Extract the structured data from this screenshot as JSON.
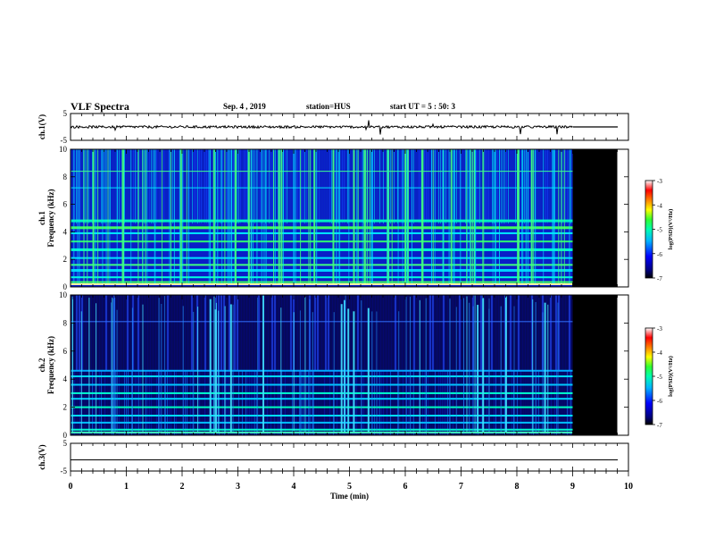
{
  "header": {
    "title": "VLF Spectra",
    "date": "Sep. 4 , 2019",
    "station": "station=HUS",
    "start_ut": "start UT =  5 : 50: 3"
  },
  "chart_data": [
    {
      "type": "line",
      "name": "ch1-waveform",
      "ylabel": "ch.1(V)",
      "ylim": [
        -5,
        5
      ],
      "yticks": [
        "5",
        "-5"
      ],
      "xlim": [
        0,
        10
      ],
      "data_end_min": 9.0,
      "flat_level_after_end": 0
    },
    {
      "type": "heatmap",
      "name": "ch1-spectrogram",
      "ylabel_top": "ch.1",
      "ylabel": "Frequency (kHz)",
      "ylim": [
        0,
        10
      ],
      "yticks": [
        "0",
        "2",
        "4",
        "6",
        "8",
        "10"
      ],
      "xlim": [
        0,
        10
      ],
      "data_end_min": 9.0,
      "blank_end_min": 9.8,
      "colorbar": {
        "label": "log(PSD)(V²/Hz)",
        "ticks": [
          "-3",
          "-4",
          "-5",
          "-6",
          "-7"
        ],
        "range": [
          -7,
          -3
        ]
      },
      "colors": [
        "#000080",
        "#0000ff",
        "#00a0ff",
        "#00ffff",
        "#40ff60",
        "#ffff00",
        "#ff8000",
        "#ff0000",
        "#ffffff"
      ]
    },
    {
      "type": "heatmap",
      "name": "ch2-spectrogram",
      "ylabel_top": "ch.2",
      "ylabel": "Frequency (kHz)",
      "ylim": [
        0,
        10
      ],
      "yticks": [
        "0",
        "2",
        "4",
        "6",
        "8",
        "10"
      ],
      "xlim": [
        0,
        10
      ],
      "data_end_min": 9.0,
      "blank_end_min": 9.8,
      "colorbar": {
        "label": "log(PSD)(V²/Hz)",
        "ticks": [
          "-3",
          "-4",
          "-5",
          "-6",
          "-7"
        ],
        "range": [
          -7,
          -3
        ]
      }
    },
    {
      "type": "line",
      "name": "ch3-waveform",
      "ylabel": "ch.3(V)",
      "ylim": [
        -5,
        5
      ],
      "yticks": [
        "5",
        "-5"
      ],
      "xlim": [
        0,
        10
      ],
      "flat_level": 0
    }
  ],
  "x_axis": {
    "label": "Time (min)",
    "ticks": [
      "0",
      "1",
      "2",
      "3",
      "4",
      "5",
      "6",
      "7",
      "8",
      "9",
      "10"
    ]
  }
}
